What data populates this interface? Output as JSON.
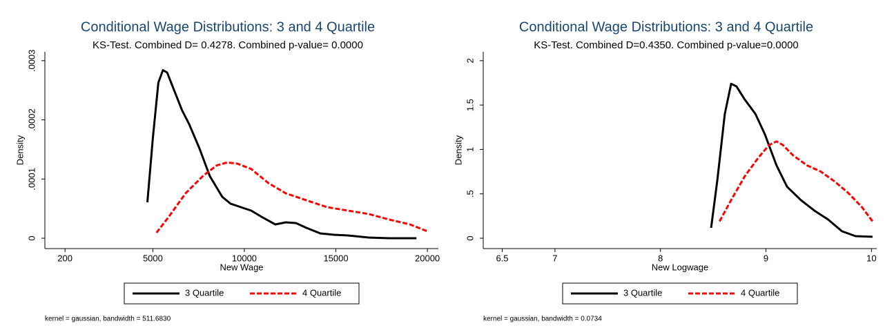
{
  "chart_data": [
    {
      "type": "line",
      "title": "Conditional Wage Distributions: 3  and 4 Quartile",
      "subtitle": "KS-Test. Combined D= 0.4278. Combined p-value= 0.0000",
      "x_label": "New Wage",
      "y_label": "Density",
      "note": "kernel = gaussian, bandwidth = 511.6830",
      "xlim": [
        -900,
        20600
      ],
      "xticks": [
        200,
        5000,
        10000,
        15000,
        20000
      ],
      "ylim": [
        -1.75e-05,
        0.000315
      ],
      "yticks": [
        0,
        {
          "value": 0.0001,
          "label": ".0001"
        },
        {
          "value": 0.0002,
          "label": ".0002"
        },
        {
          "value": 0.0003,
          "label": ".0003"
        }
      ],
      "series": [
        {
          "name": "3 Quartile",
          "color": "#000000",
          "dashed": false,
          "x": [
            4700,
            5000,
            5300,
            5550,
            5780,
            6150,
            6600,
            6980,
            7540,
            8110,
            8790,
            9240,
            9810,
            10370,
            10940,
            11690,
            12260,
            12820,
            13390,
            14150,
            14900,
            15660,
            16790,
            17920,
            19400
          ],
          "values": [
            6.07e-05,
            0.000169,
            0.000263,
            0.000284,
            0.00028,
            0.000251,
            0.000216,
            0.000193,
            0.000152,
            0.000105,
            7e-05,
            5.84e-05,
            5.25e-05,
            4.67e-05,
            3.62e-05,
            2.33e-05,
            2.68e-05,
            2.57e-05,
            1.75e-05,
            8.2e-06,
            5.8e-06,
            4.7e-06,
            1.2e-06,
            0,
            0
          ]
        },
        {
          "name": "4 Quartile",
          "color": "#ff0000",
          "dashed": true,
          "x": [
            5200,
            5840,
            6790,
            7730,
            8490,
            9050,
            9620,
            10370,
            11320,
            12260,
            13390,
            14520,
            15660,
            16790,
            17920,
            19050,
            20000
          ],
          "values": [
            9.3e-06,
            3.5e-05,
            7.6e-05,
            0.000105,
            0.000123,
            0.000128,
            0.000126,
            0.000117,
            9.3e-05,
            7.6e-05,
            6.4e-05,
            5.25e-05,
            4.67e-05,
            4.09e-05,
            3.15e-05,
            2.33e-05,
            1.17e-05
          ]
        }
      ]
    },
    {
      "type": "line",
      "title": "Conditional Wage Distributions: 3 and 4 Quartile",
      "subtitle": "KS-Test. Combined D=0.4350. Combined p-value=0.0000",
      "x_label": "New Logwage",
      "y_label": "Density",
      "note": "kernel = gaussian, bandwidth = 0.0734",
      "xlim": [
        6.32,
        10.05
      ],
      "xticks": [
        6.5,
        7,
        8,
        9,
        10
      ],
      "ylim": [
        -0.117,
        2.1
      ],
      "yticks": [
        0,
        {
          "value": 0.5,
          "label": ".5"
        },
        1,
        1.5,
        2
      ],
      "series": [
        {
          "name": "3 Quartile",
          "color": "#000000",
          "dashed": false,
          "x": [
            8.48,
            8.54,
            8.61,
            8.67,
            8.72,
            8.8,
            8.9,
            8.99,
            9.1,
            9.2,
            9.33,
            9.46,
            9.59,
            9.72,
            9.85,
            10.01
          ],
          "values": [
            0.117,
            0.66,
            1.4,
            1.74,
            1.71,
            1.56,
            1.4,
            1.17,
            0.82,
            0.58,
            0.43,
            0.31,
            0.21,
            0.078,
            0.023,
            0.016
          ]
        },
        {
          "name": "4 Quartile",
          "color": "#ff0000",
          "dashed": true,
          "x": [
            8.56,
            8.67,
            8.8,
            8.93,
            9.03,
            9.1,
            9.16,
            9.26,
            9.39,
            9.52,
            9.65,
            9.78,
            9.91,
            10.01
          ],
          "values": [
            0.19,
            0.43,
            0.7,
            0.91,
            1.05,
            1.09,
            1.05,
            0.93,
            0.82,
            0.75,
            0.64,
            0.51,
            0.35,
            0.19
          ]
        }
      ]
    }
  ]
}
